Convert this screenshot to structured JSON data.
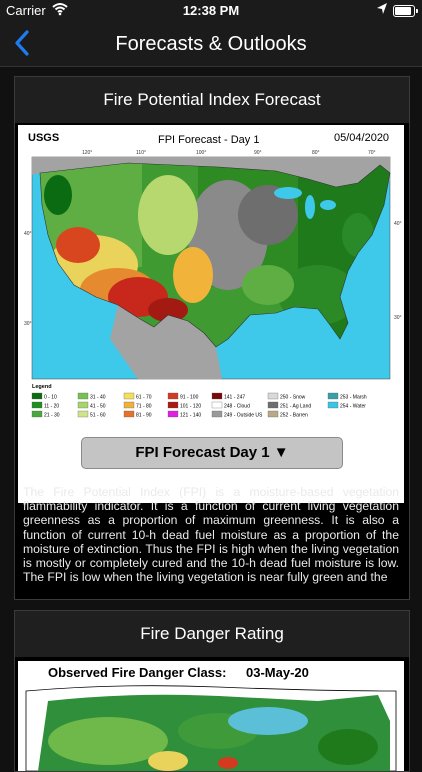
{
  "status_bar": {
    "carrier": "Carrier",
    "time": "12:38 PM"
  },
  "nav": {
    "title": "Forecasts & Outlooks",
    "back_icon": "chevron-left-icon"
  },
  "fpi_card": {
    "title": "Fire Potential Index Forecast",
    "map": {
      "logo": "USGS",
      "title": "FPI Forecast - Day 1",
      "date": "05/04/2020",
      "longitudes": [
        "120°",
        "110°",
        "100°",
        "90°",
        "80°",
        "70°"
      ],
      "latitudes": [
        "40°",
        "30°",
        "40°",
        "30°"
      ],
      "legend_title": "Legend",
      "legend": [
        {
          "color": "#0b6b12",
          "label": "0 - 10"
        },
        {
          "color": "#1f8f1f",
          "label": "11 - 20"
        },
        {
          "color": "#49a83a",
          "label": "21 - 30"
        },
        {
          "color": "#77c150",
          "label": "31 - 40"
        },
        {
          "color": "#a5d66b",
          "label": "41 - 50"
        },
        {
          "color": "#cfe38a",
          "label": "51 - 60"
        },
        {
          "color": "#f2e05a",
          "label": "61 - 70"
        },
        {
          "color": "#f0b13a",
          "label": "71 - 80"
        },
        {
          "color": "#e4722a",
          "label": "81 - 90"
        },
        {
          "color": "#d43a1f",
          "label": "91 - 100"
        },
        {
          "color": "#a81a14",
          "label": "101 - 120"
        },
        {
          "color": "#e020e0",
          "label": "121 - 140"
        },
        {
          "color": "#7a0a0a",
          "label": "141 - 247"
        },
        {
          "color": "#ffffff",
          "label": "248 - Cloud"
        },
        {
          "color": "#9a9a9a",
          "label": "249 - Outside US"
        },
        {
          "color": "#d9d9d9",
          "label": "250 - Snow"
        },
        {
          "color": "#6e6e6e",
          "label": "251 - Ag Land"
        },
        {
          "color": "#b8a98a",
          "label": "252 - Barren"
        },
        {
          "color": "#3aa0a8",
          "label": "253 - Marsh"
        },
        {
          "color": "#39c6e6",
          "label": "254 - Water"
        }
      ]
    },
    "dropdown_label": "FPI Forecast Day 1 ▼",
    "description": "The Fire Potential Index (FPI) is a moisture-based vegetation flammability indicator. It is a function of current living vegetation greenness as a proportion of maximum greenness. It is also a function of current 10-h dead fuel moisture as a proportion of the moisture of extinction. Thus the FPI is high when the living vegetation is mostly or completely cured and the 10-h dead fuel moisture is low. The FPI is low when the living vegetation is near fully green and the"
  },
  "danger_card": {
    "title": "Fire Danger Rating",
    "map": {
      "title": "Observed Fire Danger Class:",
      "date": "03-May-20"
    }
  }
}
